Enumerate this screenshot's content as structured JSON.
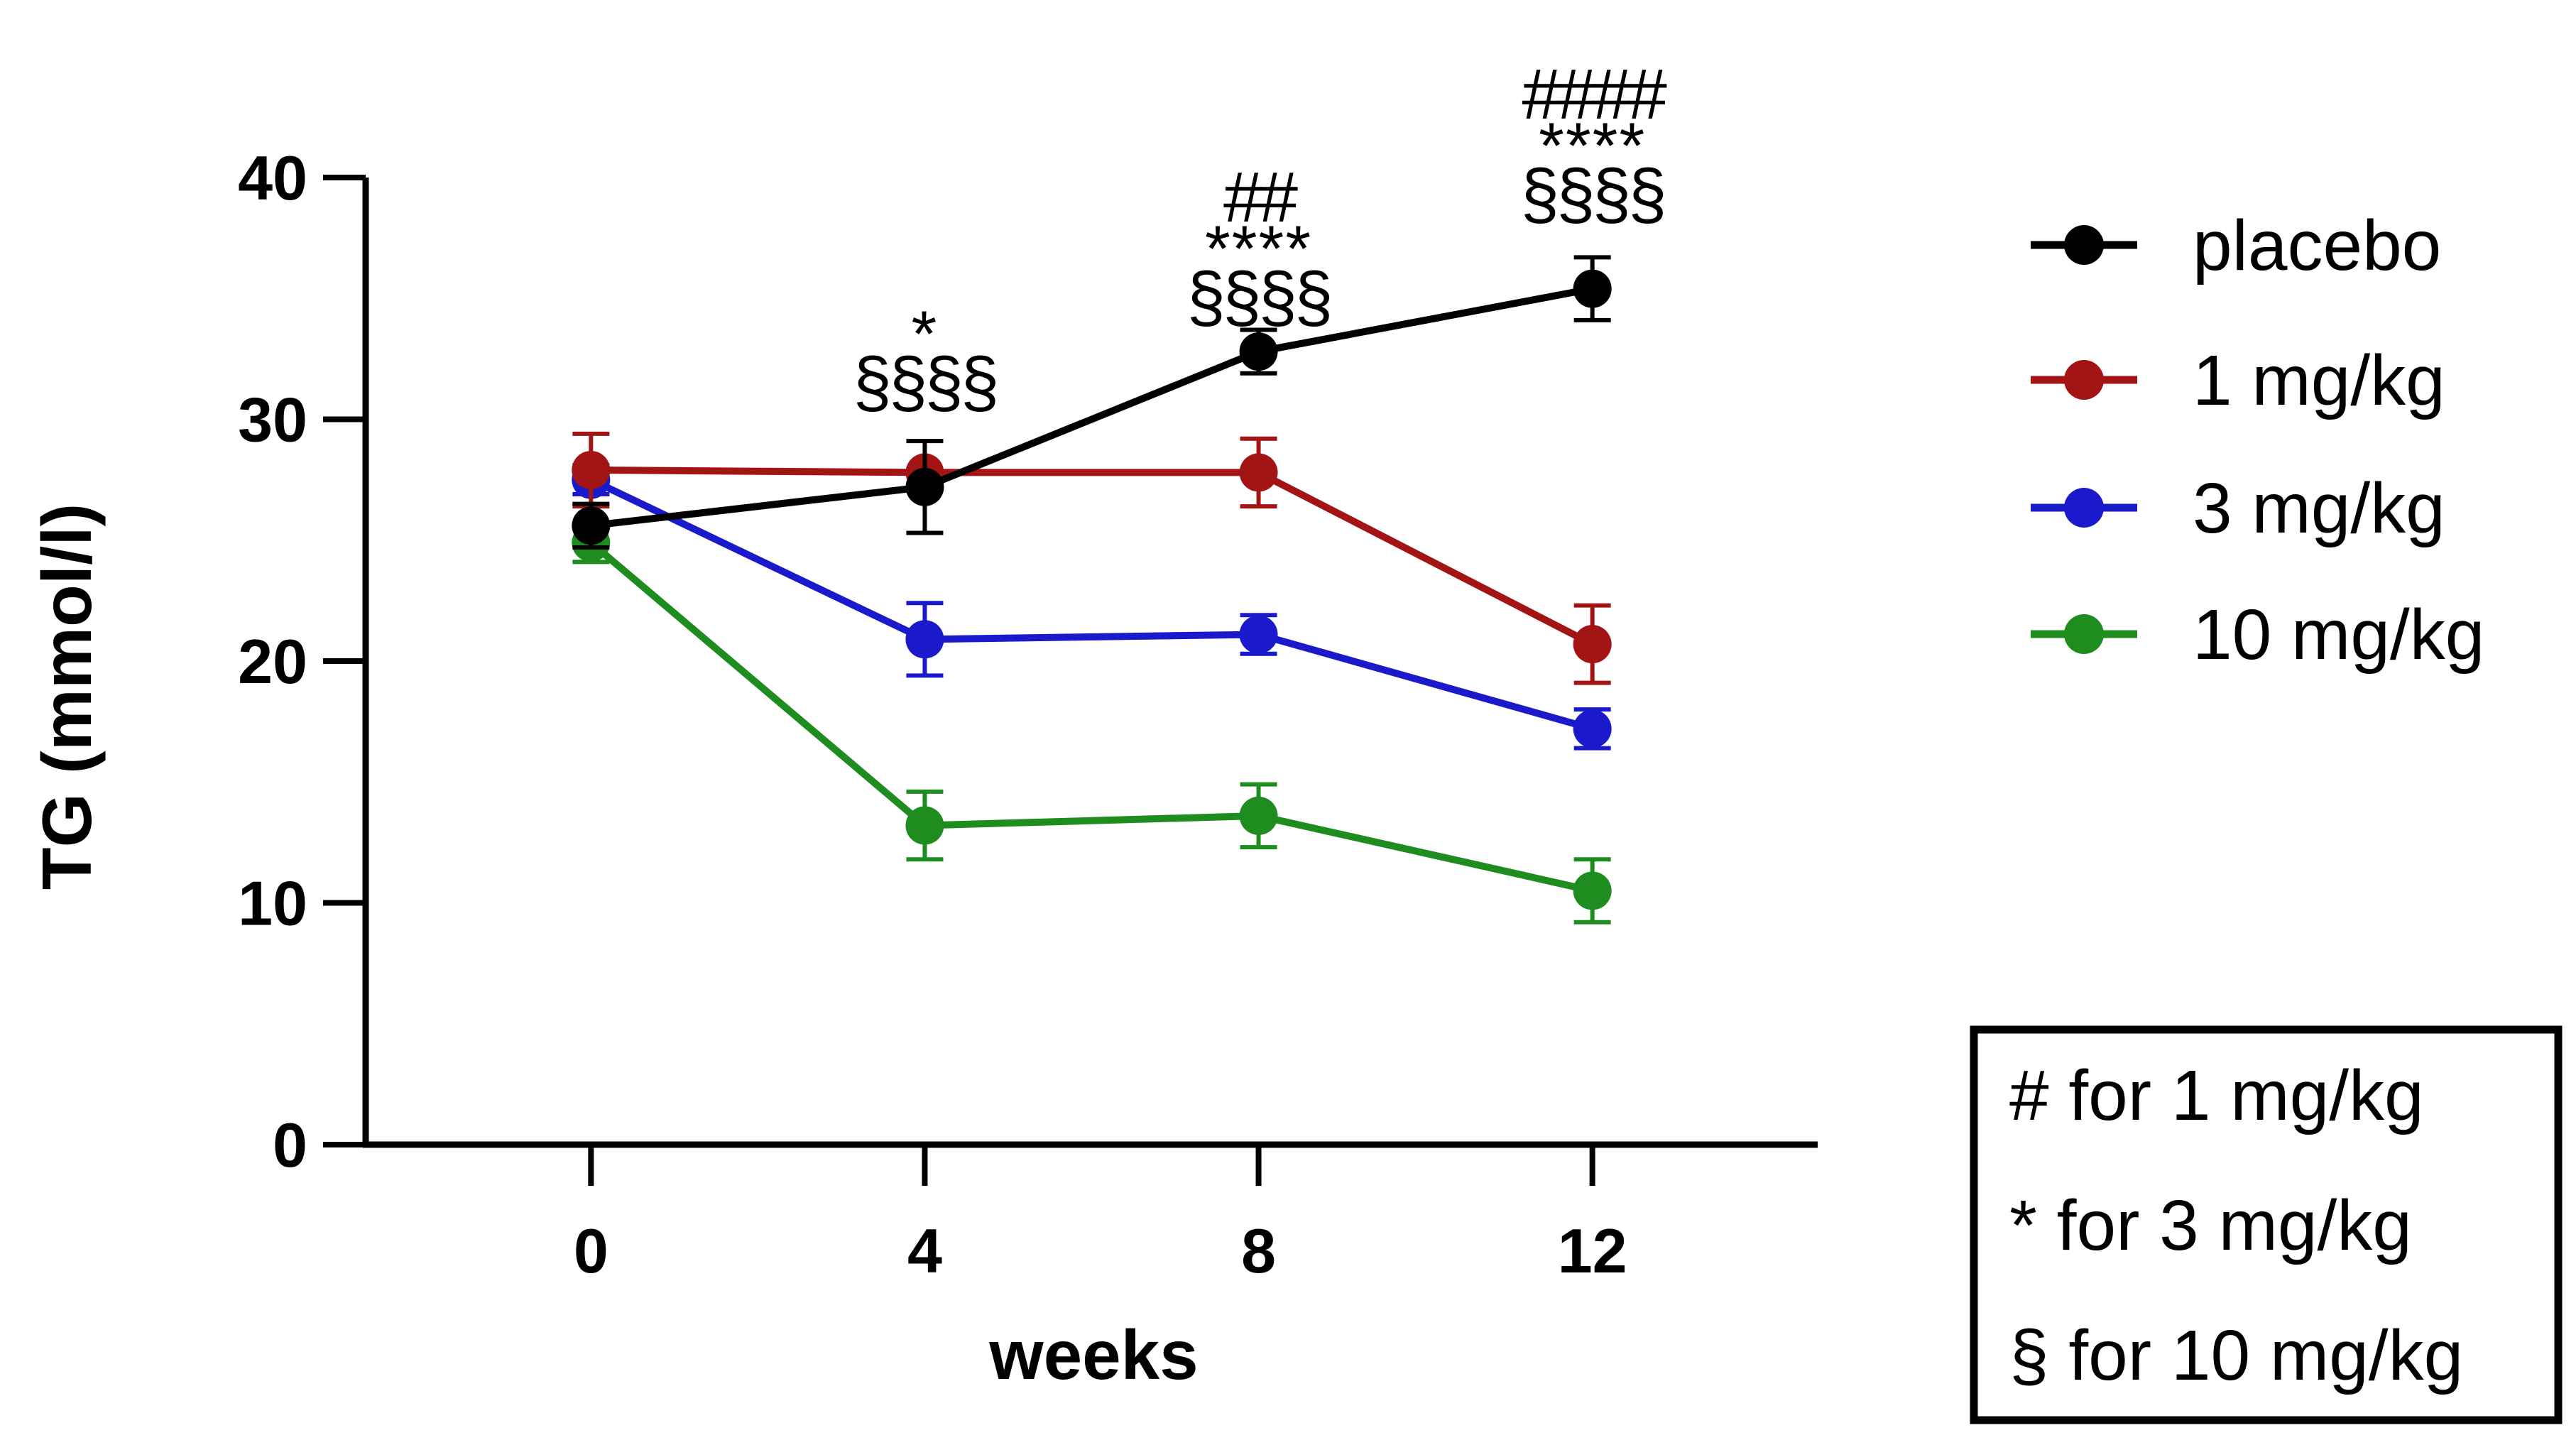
{
  "chart_data": {
    "type": "line",
    "title": "",
    "xlabel": "weeks",
    "ylabel": "TG (mmol/l)",
    "x": [
      0,
      4,
      8,
      12
    ],
    "xticks": [
      "0",
      "4",
      "8",
      "12"
    ],
    "xlim": [
      -2.7,
      14.7
    ],
    "yticks": [
      "0",
      "10",
      "20",
      "30",
      "40"
    ],
    "ylim": [
      0,
      40
    ],
    "grid": false,
    "legend_position": "right",
    "series": [
      {
        "name": "placebo",
        "color": "#000000",
        "values": [
          25.6,
          27.2,
          32.8,
          35.4
        ],
        "errors": [
          0.9,
          1.9,
          0.9,
          1.3
        ]
      },
      {
        "name": "1 mg/kg",
        "color": "#a31414",
        "values": [
          27.9,
          27.8,
          27.8,
          20.7
        ],
        "errors": [
          1.5,
          0.0,
          1.4,
          1.6
        ]
      },
      {
        "name": "3 mg/kg",
        "color": "#1a1acc",
        "values": [
          27.5,
          20.9,
          21.1,
          17.2
        ],
        "errors": [
          0.6,
          1.5,
          0.8,
          0.8
        ]
      },
      {
        "name": "10 mg/kg",
        "color": "#1e8c1e",
        "values": [
          24.9,
          13.2,
          13.6,
          10.5
        ],
        "errors": [
          0.8,
          1.4,
          1.3,
          1.3
        ]
      }
    ],
    "annotations": [
      {
        "x": 4,
        "lines": [
          "*",
          "§§§§"
        ]
      },
      {
        "x": 8,
        "lines": [
          "##",
          "****",
          "§§§§"
        ]
      },
      {
        "x": 12,
        "lines": [
          "####",
          "****",
          "§§§§"
        ]
      }
    ],
    "significance_key": [
      "# for 1 mg/kg",
      "* for 3 mg/kg",
      "§ for 10 mg/kg"
    ]
  }
}
